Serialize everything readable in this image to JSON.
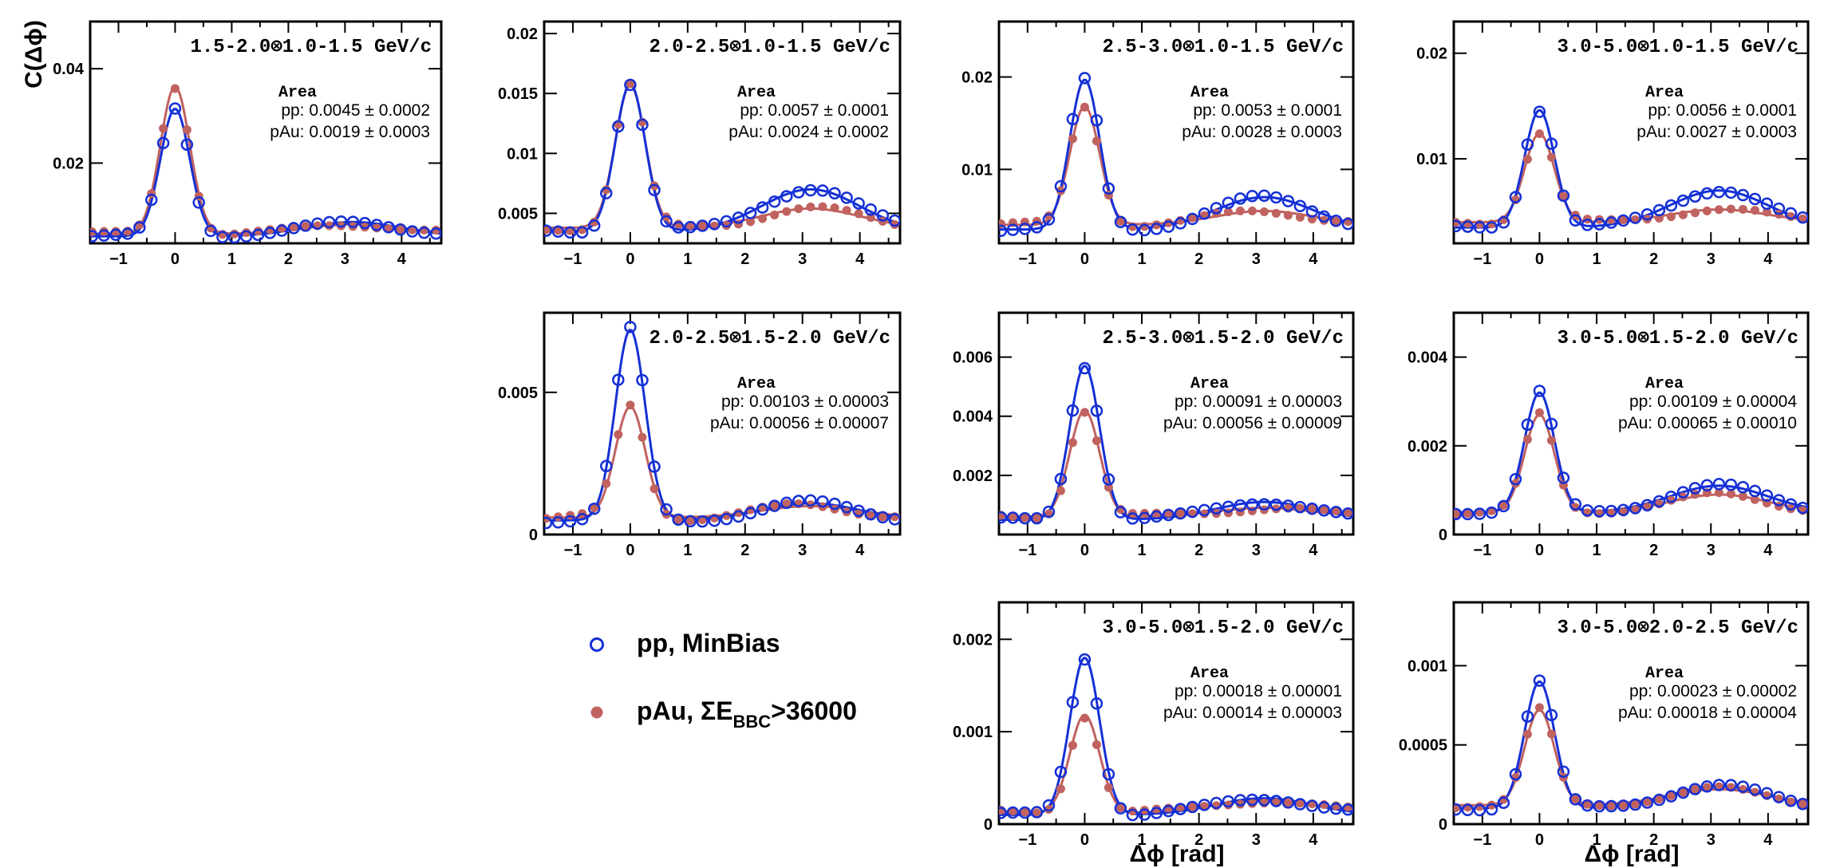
{
  "colors": {
    "pp": "#1530d6",
    "pau": "#c0625f",
    "axis": "#000000"
  },
  "axes": {
    "ylabel": "C(Δϕ)",
    "xlabel": "Δϕ [rad]"
  },
  "legend": {
    "pp_label": "pp, MinBias",
    "pau_prefix": "pAu, ΣE",
    "pau_sub": "BBC",
    "pau_suffix": ">36000"
  },
  "area_header": "Area",
  "chart_data": [
    {
      "type": "scatter",
      "title": "1.5-2.0⊗1.0-1.5 GeV/c",
      "xlim": [
        -1.5,
        4.7
      ],
      "ylim": [
        0.003,
        0.05
      ],
      "yticks": [
        0.02,
        0.04
      ],
      "xticks": [
        -1,
        0,
        1,
        2,
        3,
        4
      ],
      "pp_area": "pp:   0.0045 ± 0.0002",
      "pau_area": "pAu: 0.0019 ± 0.0003",
      "pp": {
        "base": 0.0045,
        "peak": 0.0315,
        "away": 0.0075
      },
      "pau": {
        "base": 0.005,
        "peak": 0.0362,
        "away": 0.007
      }
    },
    {
      "type": "scatter",
      "title": "2.0-2.5⊗1.0-1.5 GeV/c",
      "xlim": [
        -1.5,
        4.7
      ],
      "ylim": [
        0.0025,
        0.021
      ],
      "yticks": [
        0.005,
        0.01,
        0.015,
        0.02
      ],
      "xticks": [
        -1,
        0,
        1,
        2,
        3,
        4
      ],
      "pp_area": "pp:   0.0057 ± 0.0001",
      "pau_area": "pAu: 0.0024 ± 0.0002",
      "pp": {
        "base": 0.0035,
        "peak": 0.0158,
        "away": 0.007
      },
      "pau": {
        "base": 0.0038,
        "peak": 0.0157,
        "away": 0.0054
      }
    },
    {
      "type": "scatter",
      "title": "2.5-3.0⊗1.0-1.5 GeV/c",
      "xlim": [
        -1.5,
        4.7
      ],
      "ylim": [
        0.002,
        0.026
      ],
      "yticks": [
        0.01,
        0.02
      ],
      "xticks": [
        -1,
        0,
        1,
        2,
        3,
        4
      ],
      "pp_area": "pp:   0.0053 ± 0.0001",
      "pau_area": "pAu: 0.0028 ± 0.0003",
      "pp": {
        "base": 0.0035,
        "peak": 0.0197,
        "away": 0.007
      },
      "pau": {
        "base": 0.004,
        "peak": 0.0168,
        "away": 0.0055
      }
    },
    {
      "type": "scatter",
      "title": "3.0-5.0⊗1.0-1.5 GeV/c",
      "xlim": [
        -1.5,
        4.7
      ],
      "ylim": [
        0.002,
        0.023
      ],
      "yticks": [
        0.01,
        0.02
      ],
      "xticks": [
        -1,
        0,
        1,
        2,
        3,
        4
      ],
      "pp_area": "pp:   0.0056 ± 0.0001",
      "pau_area": "pAu: 0.0027 ± 0.0003",
      "pp": {
        "base": 0.0035,
        "peak": 0.0146,
        "away": 0.007
      },
      "pau": {
        "base": 0.004,
        "peak": 0.0124,
        "away": 0.0052
      }
    },
    {
      "type": "scatter",
      "title": "2.0-2.5⊗1.5-2.0 GeV/c",
      "xlim": [
        -1.5,
        4.7
      ],
      "ylim": [
        0,
        0.0078
      ],
      "yticks": [
        0,
        0.005
      ],
      "xticks": [
        -1,
        0,
        1,
        2,
        3,
        4
      ],
      "pp_area": "pp:   0.00103 ± 0.00003",
      "pau_area": "pAu: 0.00056 ± 0.00007",
      "pp": {
        "base": 0.0005,
        "peak": 0.0072,
        "away": 0.0011
      },
      "pau": {
        "base": 0.0006,
        "peak": 0.0045,
        "away": 0.001
      }
    },
    {
      "type": "scatter",
      "title": "2.5-3.0⊗1.5-2.0 GeV/c",
      "xlim": [
        -1.5,
        4.7
      ],
      "ylim": [
        0,
        0.0075
      ],
      "yticks": [
        0.002,
        0.004,
        0.006
      ],
      "xticks": [
        -1,
        0,
        1,
        2,
        3,
        4
      ],
      "pp_area": "pp:   0.00091 ± 0.00003",
      "pau_area": "pAu: 0.00056 ± 0.00009",
      "pp": {
        "base": 0.0005,
        "peak": 0.0057,
        "away": 0.0011
      },
      "pau": {
        "base": 0.0006,
        "peak": 0.0042,
        "away": 0.0009
      }
    },
    {
      "type": "scatter",
      "title": "3.0-5.0⊗1.5-2.0 GeV/c",
      "xlim": [
        -1.5,
        4.7
      ],
      "ylim": [
        0,
        0.005
      ],
      "yticks": [
        0,
        0.002,
        0.004
      ],
      "xticks": [
        -1,
        0,
        1,
        2,
        3,
        4
      ],
      "pp_area": "pp:   0.00109 ± 0.00004",
      "pau_area": "pAu: 0.00065 ± 0.00010",
      "pp": {
        "base": 0.0005,
        "peak": 0.0032,
        "away": 0.0011
      },
      "pau": {
        "base": 0.0005,
        "peak": 0.0027,
        "away": 0.0009
      }
    },
    {
      "type": "scatter",
      "title": "3.0-5.0⊗1.5-2.0 GeV/c",
      "xlim": [
        -1.5,
        4.7
      ],
      "ylim": [
        0,
        0.0024
      ],
      "yticks": [
        0,
        0.001,
        0.002
      ],
      "xticks": [
        -1,
        0,
        1,
        2,
        3,
        4
      ],
      "pp_area": "pp:   0.00018 ± 0.00001",
      "pau_area": "pAu: 0.00014 ± 0.00003",
      "pp": {
        "base": 0.0001,
        "peak": 0.0018,
        "away": 0.00028
      },
      "pau": {
        "base": 0.00012,
        "peak": 0.00118,
        "away": 0.00026
      }
    },
    {
      "type": "scatter",
      "title": "3.0-5.0⊗2.0-2.5 GeV/c",
      "xlim": [
        -1.5,
        4.7
      ],
      "ylim": [
        0,
        0.0014
      ],
      "yticks": [
        0,
        0.0005,
        0.001
      ],
      "xticks": [
        -1,
        0,
        1,
        2,
        3,
        4
      ],
      "pp_area": "pp:   0.00023 ± 0.00002",
      "pau_area": "pAu: 0.00018 ± 0.00004",
      "pp": {
        "base": 0.0001,
        "peak": 0.0009,
        "away": 0.00024
      },
      "pau": {
        "base": 0.00012,
        "peak": 0.00072,
        "away": 0.00022
      }
    }
  ]
}
